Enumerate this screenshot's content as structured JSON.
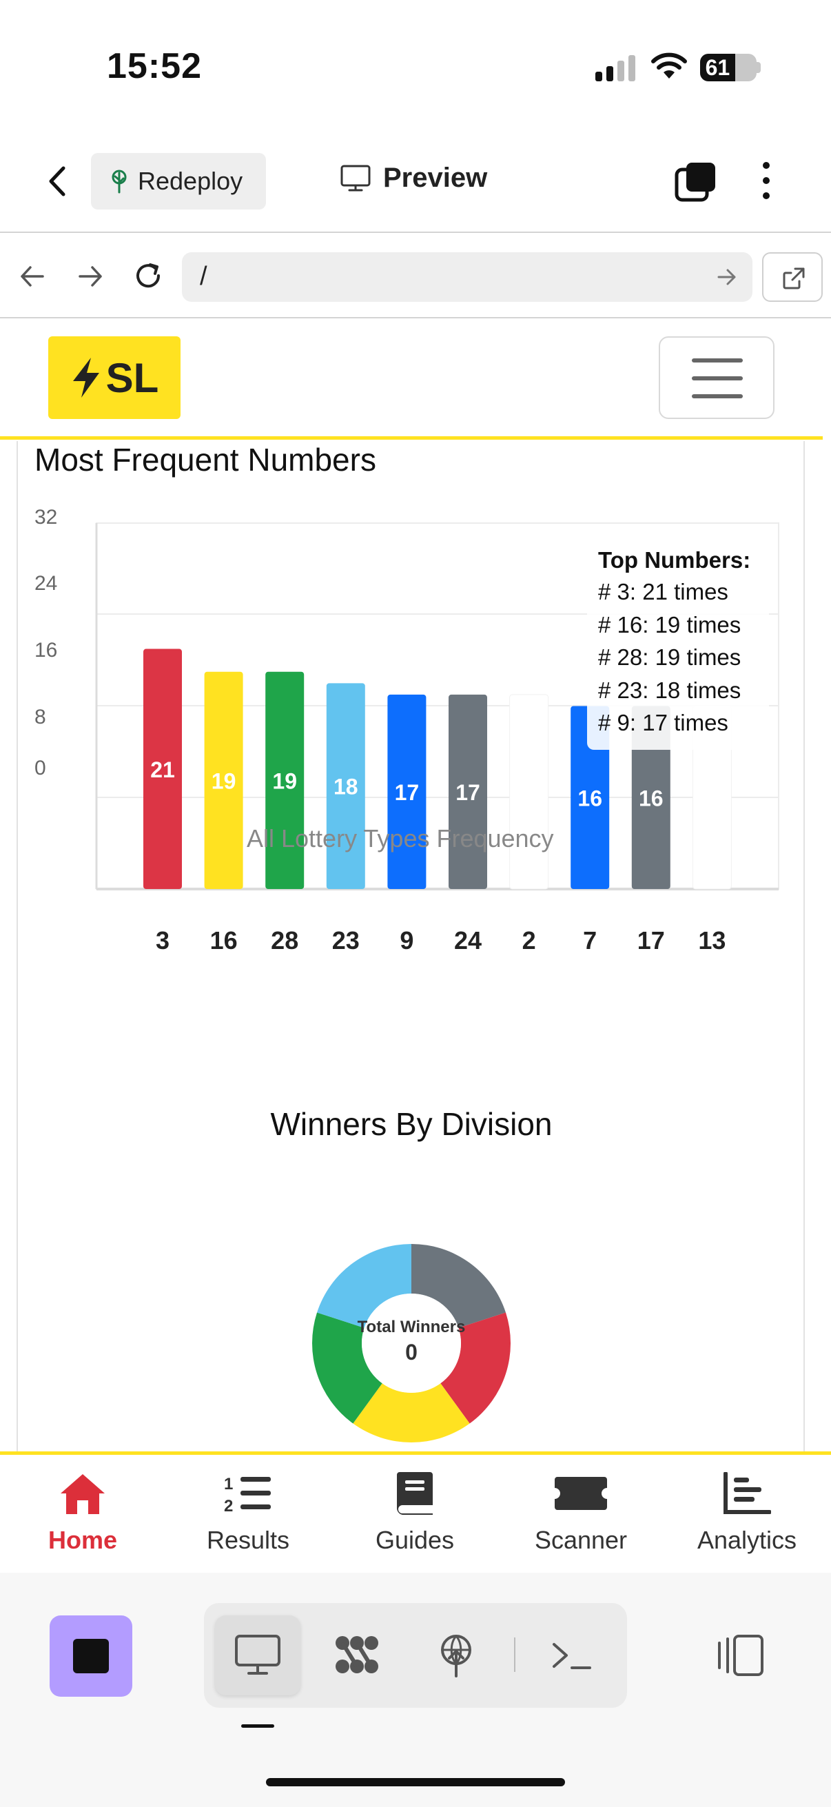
{
  "status_bar": {
    "time": "15:52",
    "battery": "61"
  },
  "top_bar": {
    "redeploy_label": "Redeploy",
    "preview_label": "Preview"
  },
  "url_bar": {
    "value": "/"
  },
  "site": {
    "logo_text": "SL"
  },
  "chart_section": {
    "title": "Most Frequent Numbers"
  },
  "chart_data": [
    {
      "type": "bar",
      "title": "Most Frequent Numbers",
      "categories": [
        "3",
        "16",
        "28",
        "23",
        "9",
        "24",
        "2",
        "7",
        "17",
        "13"
      ],
      "values": [
        21,
        19,
        19,
        18,
        17,
        17,
        17,
        16,
        16,
        16
      ],
      "data_labels": [
        "21",
        "19",
        "19",
        "18",
        "17",
        "17",
        "",
        "16",
        "16",
        ""
      ],
      "bar_colors": [
        "#dc3545",
        "#ffe221",
        "#1fa54a",
        "#62c3ef",
        "#0d6efd",
        "#6c757d",
        "#ffffff",
        "#0d6efd",
        "#6c757d",
        "#ffffff"
      ],
      "y_ticks": [
        "32",
        "24",
        "16",
        "8",
        "0"
      ],
      "legend": "All Lottery Types Frequency",
      "grid": true,
      "tooltip": {
        "title": "Top Numbers:",
        "lines": [
          "# 3: 21 times",
          "# 16: 19 times",
          "# 28: 19 times",
          "# 23: 18 times",
          "# 9: 17 times"
        ]
      }
    },
    {
      "type": "pie",
      "title": "Winners By Division",
      "center_label": "Total Winners",
      "center_value": "0",
      "slice_colors": [
        "#6c757d",
        "#dc3545",
        "#ffe221",
        "#1fa54a",
        "#62c3ef"
      ]
    }
  ],
  "bottom_nav": {
    "items": [
      {
        "label": "Home",
        "icon": "home-icon"
      },
      {
        "label": "Results",
        "icon": "list-ol-icon"
      },
      {
        "label": "Guides",
        "icon": "book-icon"
      },
      {
        "label": "Scanner",
        "icon": "ticket-icon"
      },
      {
        "label": "Analytics",
        "icon": "bar-chart-icon"
      }
    ]
  },
  "colors": {
    "accent_yellow": "#ffe221",
    "active_red": "#dc2f3a",
    "stop_purple": "#b39cff"
  }
}
